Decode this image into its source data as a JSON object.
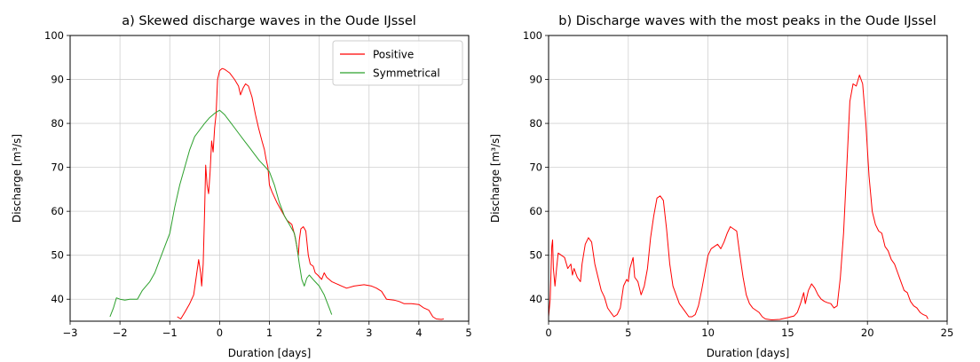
{
  "chart_data": [
    {
      "type": "line",
      "title": "a) Skewed discharge waves in the Oude IJssel",
      "xlabel": "Duration [days]",
      "ylabel": "Discharge [m³/s]",
      "xlim": [
        -3,
        5
      ],
      "ylim": [
        35,
        100
      ],
      "xticks": [
        -3,
        -2,
        -1,
        0,
        1,
        2,
        3,
        4,
        5
      ],
      "yticks": [
        40,
        50,
        60,
        70,
        80,
        90,
        100
      ],
      "grid": true,
      "legend": "top-right",
      "series": [
        {
          "name": "Positive",
          "color": "#ff0000",
          "points": [
            [
              -0.85,
              36
            ],
            [
              -0.78,
              35.5
            ],
            [
              -0.7,
              37
            ],
            [
              -0.6,
              39
            ],
            [
              -0.52,
              41
            ],
            [
              -0.47,
              45
            ],
            [
              -0.42,
              49
            ],
            [
              -0.38,
              46
            ],
            [
              -0.36,
              43
            ],
            [
              -0.33,
              48
            ],
            [
              -0.3,
              60
            ],
            [
              -0.28,
              70.5
            ],
            [
              -0.25,
              66
            ],
            [
              -0.22,
              64
            ],
            [
              -0.19,
              69
            ],
            [
              -0.16,
              76
            ],
            [
              -0.13,
              73.5
            ],
            [
              -0.1,
              79
            ],
            [
              -0.07,
              82
            ],
            [
              -0.04,
              90
            ],
            [
              0.0,
              92
            ],
            [
              0.05,
              92.5
            ],
            [
              0.1,
              92.3
            ],
            [
              0.2,
              91.5
            ],
            [
              0.3,
              90
            ],
            [
              0.38,
              88.5
            ],
            [
              0.42,
              86.5
            ],
            [
              0.47,
              88
            ],
            [
              0.52,
              89
            ],
            [
              0.58,
              88.5
            ],
            [
              0.65,
              86
            ],
            [
              0.72,
              82
            ],
            [
              0.78,
              79
            ],
            [
              0.85,
              76
            ],
            [
              0.9,
              74
            ],
            [
              0.93,
              72
            ],
            [
              0.97,
              70
            ],
            [
              1.0,
              66
            ],
            [
              1.05,
              64.5
            ],
            [
              1.15,
              62
            ],
            [
              1.25,
              60
            ],
            [
              1.35,
              58
            ],
            [
              1.45,
              57
            ],
            [
              1.52,
              54
            ],
            [
              1.58,
              50
            ],
            [
              1.6,
              53.5
            ],
            [
              1.63,
              56
            ],
            [
              1.68,
              56.5
            ],
            [
              1.73,
              55.5
            ],
            [
              1.78,
              50
            ],
            [
              1.82,
              48
            ],
            [
              1.88,
              47.5
            ],
            [
              1.92,
              46
            ],
            [
              1.97,
              45.5
            ],
            [
              2.05,
              44.5
            ],
            [
              2.1,
              46
            ],
            [
              2.15,
              45
            ],
            [
              2.25,
              44
            ],
            [
              2.35,
              43.5
            ],
            [
              2.45,
              43
            ],
            [
              2.55,
              42.5
            ],
            [
              2.7,
              43
            ],
            [
              2.9,
              43.3
            ],
            [
              3.05,
              43
            ],
            [
              3.15,
              42.5
            ],
            [
              3.25,
              41.8
            ],
            [
              3.35,
              40
            ],
            [
              3.5,
              39.8
            ],
            [
              3.6,
              39.5
            ],
            [
              3.7,
              39
            ],
            [
              3.85,
              39
            ],
            [
              4.0,
              38.8
            ],
            [
              4.1,
              38
            ],
            [
              4.2,
              37.5
            ],
            [
              4.28,
              36
            ],
            [
              4.35,
              35.5
            ],
            [
              4.45,
              35.4
            ],
            [
              4.5,
              35.5
            ]
          ]
        },
        {
          "name": "Symmetrical",
          "color": "#2ca02c",
          "points": [
            [
              -2.2,
              36
            ],
            [
              -2.13,
              38
            ],
            [
              -2.07,
              40.3
            ],
            [
              -2.0,
              40
            ],
            [
              -1.9,
              39.8
            ],
            [
              -1.8,
              40
            ],
            [
              -1.65,
              40
            ],
            [
              -1.55,
              42
            ],
            [
              -1.4,
              44
            ],
            [
              -1.3,
              46
            ],
            [
              -1.2,
              49
            ],
            [
              -1.1,
              52
            ],
            [
              -1.0,
              55
            ],
            [
              -0.9,
              61
            ],
            [
              -0.8,
              66
            ],
            [
              -0.7,
              70
            ],
            [
              -0.6,
              74
            ],
            [
              -0.5,
              77
            ],
            [
              -0.4,
              78.5
            ],
            [
              -0.3,
              80
            ],
            [
              -0.2,
              81.3
            ],
            [
              -0.1,
              82.3
            ],
            [
              0.0,
              83
            ],
            [
              0.1,
              82
            ],
            [
              0.2,
              80.5
            ],
            [
              0.3,
              79
            ],
            [
              0.4,
              77.5
            ],
            [
              0.5,
              76
            ],
            [
              0.6,
              74.5
            ],
            [
              0.7,
              73
            ],
            [
              0.8,
              71.5
            ],
            [
              0.9,
              70.3
            ],
            [
              1.0,
              69
            ],
            [
              1.1,
              66
            ],
            [
              1.2,
              62
            ],
            [
              1.3,
              59
            ],
            [
              1.4,
              57
            ],
            [
              1.5,
              55
            ],
            [
              1.55,
              52
            ],
            [
              1.6,
              48
            ],
            [
              1.65,
              44.5
            ],
            [
              1.7,
              43
            ],
            [
              1.75,
              44.8
            ],
            [
              1.8,
              45.5
            ],
            [
              1.9,
              44.2
            ],
            [
              2.0,
              43
            ],
            [
              2.1,
              41
            ],
            [
              2.2,
              38
            ],
            [
              2.25,
              36.5
            ]
          ]
        }
      ]
    },
    {
      "type": "line",
      "title": "b) Discharge waves with the most peaks in the Oude IJssel",
      "xlabel": "Duration [days]",
      "ylabel": "Discharge [m³/s]",
      "xlim": [
        0,
        25
      ],
      "ylim": [
        35,
        100
      ],
      "xticks": [
        0,
        5,
        10,
        15,
        20,
        25
      ],
      "yticks": [
        40,
        50,
        60,
        70,
        80,
        90,
        100
      ],
      "grid": true,
      "series": [
        {
          "color": "#ff0000",
          "points": [
            [
              0.0,
              36
            ],
            [
              0.1,
              40
            ],
            [
              0.2,
              52
            ],
            [
              0.25,
              53.5
            ],
            [
              0.3,
              47
            ],
            [
              0.4,
              43
            ],
            [
              0.5,
              47
            ],
            [
              0.6,
              50.5
            ],
            [
              0.8,
              50
            ],
            [
              1.0,
              49.5
            ],
            [
              1.2,
              47
            ],
            [
              1.4,
              48
            ],
            [
              1.5,
              45.5
            ],
            [
              1.6,
              47
            ],
            [
              1.8,
              45
            ],
            [
              2.0,
              44
            ],
            [
              2.1,
              48
            ],
            [
              2.3,
              52.5
            ],
            [
              2.5,
              54
            ],
            [
              2.7,
              53
            ],
            [
              2.9,
              48
            ],
            [
              3.1,
              45
            ],
            [
              3.3,
              42
            ],
            [
              3.5,
              40.5
            ],
            [
              3.7,
              38
            ],
            [
              3.9,
              37
            ],
            [
              4.1,
              36
            ],
            [
              4.3,
              36.5
            ],
            [
              4.5,
              38
            ],
            [
              4.7,
              43
            ],
            [
              4.9,
              44.5
            ],
            [
              5.0,
              44
            ],
            [
              5.1,
              47
            ],
            [
              5.3,
              49.5
            ],
            [
              5.4,
              45
            ],
            [
              5.6,
              44
            ],
            [
              5.8,
              41
            ],
            [
              6.0,
              43
            ],
            [
              6.2,
              47
            ],
            [
              6.4,
              54
            ],
            [
              6.6,
              59
            ],
            [
              6.8,
              63
            ],
            [
              7.0,
              63.5
            ],
            [
              7.2,
              62.5
            ],
            [
              7.4,
              56
            ],
            [
              7.6,
              48
            ],
            [
              7.8,
              43
            ],
            [
              8.0,
              41
            ],
            [
              8.2,
              39
            ],
            [
              8.4,
              38
            ],
            [
              8.6,
              37
            ],
            [
              8.8,
              36
            ],
            [
              9.0,
              36
            ],
            [
              9.2,
              36.5
            ],
            [
              9.4,
              38.5
            ],
            [
              9.6,
              42
            ],
            [
              9.8,
              46
            ],
            [
              10.0,
              50
            ],
            [
              10.2,
              51.5
            ],
            [
              10.4,
              52
            ],
            [
              10.6,
              52.5
            ],
            [
              10.8,
              51.5
            ],
            [
              11.0,
              53
            ],
            [
              11.2,
              55
            ],
            [
              11.4,
              56.5
            ],
            [
              11.6,
              56
            ],
            [
              11.8,
              55.5
            ],
            [
              12.0,
              50
            ],
            [
              12.2,
              45
            ],
            [
              12.4,
              41
            ],
            [
              12.6,
              39
            ],
            [
              12.8,
              38
            ],
            [
              13.0,
              37.5
            ],
            [
              13.2,
              37
            ],
            [
              13.4,
              36
            ],
            [
              13.6,
              35.5
            ],
            [
              14.0,
              35.3
            ],
            [
              14.5,
              35.4
            ],
            [
              15.0,
              35.8
            ],
            [
              15.4,
              36.2
            ],
            [
              15.6,
              37
            ],
            [
              15.8,
              39
            ],
            [
              16.0,
              41.5
            ],
            [
              16.1,
              39
            ],
            [
              16.3,
              42
            ],
            [
              16.5,
              43.5
            ],
            [
              16.7,
              42.5
            ],
            [
              16.9,
              41
            ],
            [
              17.1,
              40
            ],
            [
              17.3,
              39.5
            ],
            [
              17.5,
              39.2
            ],
            [
              17.7,
              39
            ],
            [
              17.9,
              38
            ],
            [
              18.1,
              38.5
            ],
            [
              18.3,
              45
            ],
            [
              18.5,
              55
            ],
            [
              18.7,
              70
            ],
            [
              18.9,
              85
            ],
            [
              19.1,
              89
            ],
            [
              19.3,
              88.5
            ],
            [
              19.5,
              91
            ],
            [
              19.7,
              89
            ],
            [
              19.9,
              80
            ],
            [
              20.1,
              68
            ],
            [
              20.3,
              60
            ],
            [
              20.5,
              57
            ],
            [
              20.7,
              55.5
            ],
            [
              20.9,
              55
            ],
            [
              21.1,
              52
            ],
            [
              21.3,
              51
            ],
            [
              21.5,
              49
            ],
            [
              21.7,
              48
            ],
            [
              21.9,
              46
            ],
            [
              22.1,
              44
            ],
            [
              22.3,
              42
            ],
            [
              22.5,
              41.5
            ],
            [
              22.7,
              39.5
            ],
            [
              22.9,
              38.5
            ],
            [
              23.1,
              38
            ],
            [
              23.3,
              37
            ],
            [
              23.5,
              36.5
            ],
            [
              23.7,
              36.2
            ],
            [
              23.8,
              35.5
            ]
          ]
        }
      ]
    }
  ]
}
